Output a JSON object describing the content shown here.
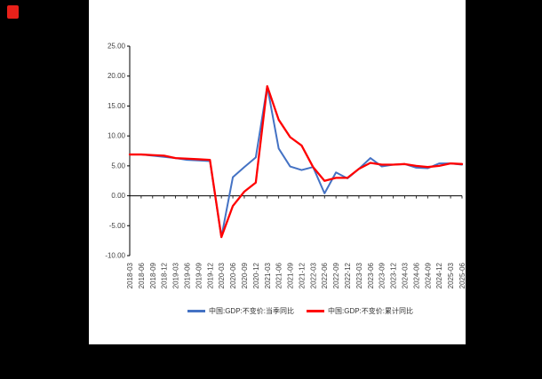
{
  "panel": {
    "background": "#ffffff",
    "outer_background": "#000000",
    "logo_color": "#e8211a"
  },
  "chart_data": {
    "type": "line",
    "title": "",
    "xlabel": "",
    "ylabel": "",
    "grid": false,
    "legend_position": "bottom",
    "ylim": [
      -10,
      25
    ],
    "ytick_step": 5,
    "ytick_decimals": 2,
    "axis_color": "#000000",
    "tick_label_color": "#404040",
    "categories": [
      "2018-03",
      "2018-06",
      "2018-09",
      "2018-12",
      "2019-03",
      "2019-06",
      "2019-09",
      "2019-12",
      "2020-03",
      "2020-06",
      "2020-09",
      "2020-12",
      "2021-03",
      "2021-06",
      "2021-09",
      "2021-12",
      "2022-03",
      "2022-06",
      "2022-09",
      "2022-12",
      "2023-03",
      "2023-06",
      "2023-09",
      "2023-12",
      "2024-03",
      "2024-06",
      "2024-09",
      "2024-12",
      "2025-03",
      "2025-06"
    ],
    "series": [
      {
        "name": "中国:GDP:不变价:当季同比",
        "color": "#4472c4",
        "values": [
          6.9,
          6.9,
          6.7,
          6.5,
          6.3,
          6.0,
          5.9,
          5.8,
          -6.9,
          3.1,
          4.8,
          6.4,
          18.3,
          7.9,
          4.9,
          4.3,
          4.8,
          0.4,
          3.9,
          2.9,
          4.5,
          6.3,
          4.9,
          5.2,
          5.3,
          4.7,
          4.6,
          5.4,
          5.4,
          5.2
        ]
      },
      {
        "name": "中国:GDP:不变价:累计同比",
        "color": "#ff0000",
        "values": [
          6.9,
          6.9,
          6.8,
          6.7,
          6.3,
          6.2,
          6.1,
          6.0,
          -6.9,
          -1.7,
          0.7,
          2.2,
          18.3,
          12.7,
          9.8,
          8.4,
          4.8,
          2.5,
          3.0,
          3.0,
          4.5,
          5.5,
          5.2,
          5.2,
          5.3,
          5.0,
          4.8,
          5.0,
          5.4,
          5.3
        ]
      }
    ]
  }
}
